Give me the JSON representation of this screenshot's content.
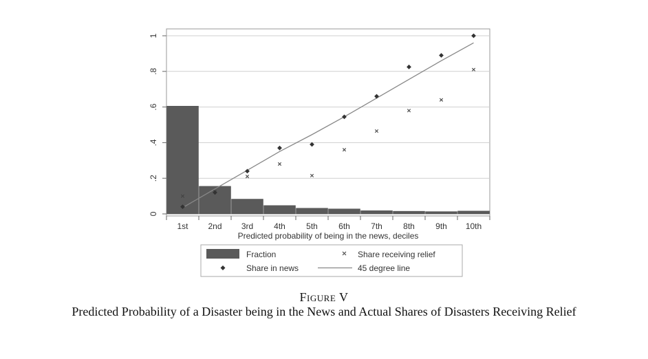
{
  "figure": {
    "label": "Figure V",
    "title": "Predicted Probability of a Disaster being in the News and Actual Shares of Disasters Receiving Relief"
  },
  "chart_data": {
    "type": "bar",
    "categories": [
      "1st",
      "2nd",
      "3rd",
      "4th",
      "5th",
      "6th",
      "7th",
      "8th",
      "9th",
      "10th"
    ],
    "xlabel": "Predicted probability of being in the news, deciles",
    "ylabel": "",
    "ylim": [
      0,
      1
    ],
    "yticks": [
      0,
      0.2,
      0.4,
      0.6,
      0.8,
      1
    ],
    "ytick_labels": [
      "0",
      ".2",
      ".4",
      ".6",
      ".8",
      "1"
    ],
    "grid": true,
    "legend_position": "bottom",
    "series": [
      {
        "name": "Fraction",
        "kind": "bar",
        "color": "#5a5a5a",
        "values": [
          0.605,
          0.155,
          0.083,
          0.047,
          0.032,
          0.028,
          0.018,
          0.015,
          0.013,
          0.016
        ]
      },
      {
        "name": "Share receiving relief",
        "kind": "scatter",
        "marker": "x",
        "color": "#444444",
        "values": [
          0.1,
          0.125,
          0.21,
          0.28,
          0.215,
          0.36,
          0.465,
          0.58,
          0.64,
          0.81
        ]
      },
      {
        "name": "Share in news",
        "kind": "scatter",
        "marker": "diamond",
        "color": "#333333",
        "values": [
          0.04,
          0.12,
          0.24,
          0.37,
          0.39,
          0.545,
          0.66,
          0.825,
          0.89,
          1.0
        ]
      },
      {
        "name": "45 degree line",
        "kind": "line",
        "color": "#888888",
        "values": [
          0.035,
          0.14,
          0.245,
          0.35,
          0.445,
          0.545,
          0.65,
          0.755,
          0.86,
          0.96
        ]
      }
    ]
  }
}
